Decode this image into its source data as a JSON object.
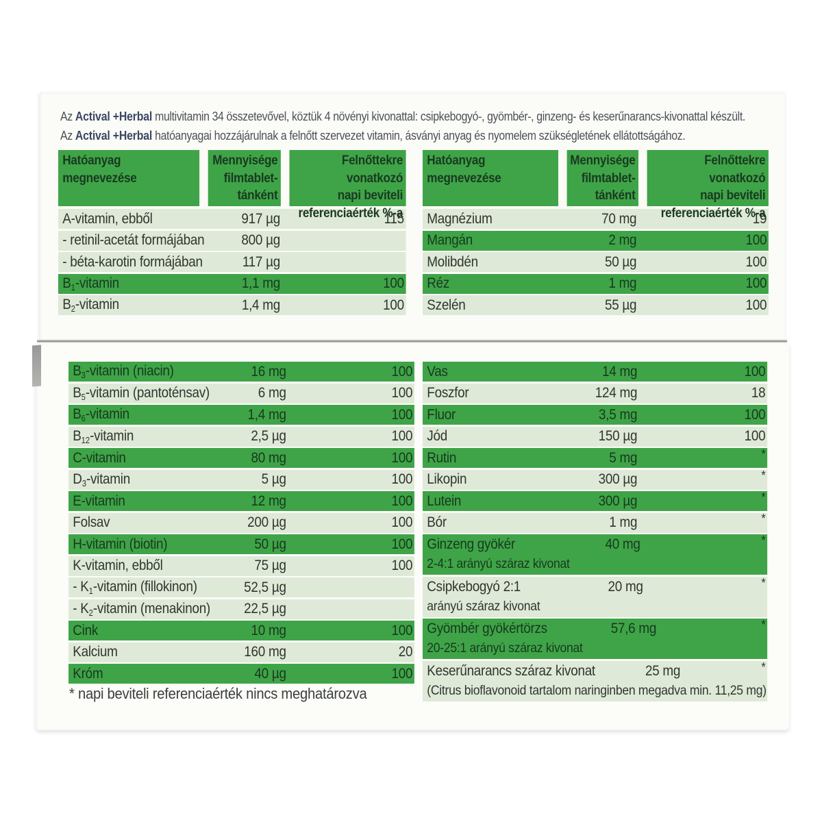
{
  "product": {
    "brand": "Actival +Herbal"
  },
  "intro": {
    "line1": "Az <b>Actival +Herbal</b> multivitamin 34 összetevővel, köztük 4 növényi kivonattal: csipkebogyó-, gyömbér-, ginzeng- és keserűnarancs-kivonattal készült.",
    "line2": "Az <b>Actival +Herbal</b> hatóanyagai hozzájárulnak a felnőtt szervezet vitamin, ásványi anyag és nyomelem szükségletének ellátottságához."
  },
  "colors": {
    "stripe_dark": "#3fa447",
    "stripe_light": "#dfe9d8",
    "header_green": "#3fa447",
    "brand_text": "#3a4763"
  },
  "header": {
    "col1": "Hatóanyag\nmegnevezése",
    "col2": "Mennyisége\nfilmtablet-\ntánként",
    "col3": "Felnőttekre vonatkozó\nnapi beviteli\nreferenciaérték %-a"
  },
  "tables": {
    "top_left": {
      "rows": [
        {
          "name": "A-vitamin, ebből",
          "amount": "917 µg",
          "ref": "115",
          "shade": "light"
        },
        {
          "name": "- retinil-acetát formájában",
          "amount": "800 µg",
          "ref": "",
          "shade": "light"
        },
        {
          "name": "- béta-karotin formájában",
          "amount": "117 µg",
          "ref": "",
          "shade": "light"
        },
        {
          "name": "B<sub>1</sub>-vitamin",
          "amount": "1,1 mg",
          "ref": "100",
          "shade": "dark"
        },
        {
          "name": "B<sub>2</sub>-vitamin",
          "amount": "1,4 mg",
          "ref": "100",
          "shade": "light"
        }
      ]
    },
    "top_right": {
      "rows": [
        {
          "name": "Magnézium",
          "amount": "70 mg",
          "ref": "19",
          "shade": "light"
        },
        {
          "name": "Mangán",
          "amount": "2 mg",
          "ref": "100",
          "shade": "dark"
        },
        {
          "name": "Molibdén",
          "amount": "50 µg",
          "ref": "100",
          "shade": "light"
        },
        {
          "name": "Réz",
          "amount": "1 mg",
          "ref": "100",
          "shade": "dark"
        },
        {
          "name": "Szelén",
          "amount": "55 µg",
          "ref": "100",
          "shade": "light"
        }
      ]
    },
    "bottom_left": {
      "rows": [
        {
          "name": "B<sub>3</sub>-vitamin (niacin)",
          "amount": "16 mg",
          "ref": "100",
          "shade": "dark"
        },
        {
          "name": "B<sub>5</sub>-vitamin (pantoténsav)",
          "amount": "6 mg",
          "ref": "100",
          "shade": "light"
        },
        {
          "name": "B<sub>6</sub>-vitamin",
          "amount": "1,4 mg",
          "ref": "100",
          "shade": "dark"
        },
        {
          "name": "B<sub>12</sub>-vitamin",
          "amount": "2,5 µg",
          "ref": "100",
          "shade": "light"
        },
        {
          "name": "C-vitamin",
          "amount": "80 mg",
          "ref": "100",
          "shade": "dark"
        },
        {
          "name": "D<sub>3</sub>-vitamin",
          "amount": "5 µg",
          "ref": "100",
          "shade": "light"
        },
        {
          "name": "E-vitamin",
          "amount": "12 mg",
          "ref": "100",
          "shade": "dark"
        },
        {
          "name": "Folsav",
          "amount": "200 µg",
          "ref": "100",
          "shade": "light"
        },
        {
          "name": "H-vitamin (biotin)",
          "amount": "50 µg",
          "ref": "100",
          "shade": "dark"
        },
        {
          "name": "K-vitamin, ebből",
          "amount": "75 µg",
          "ref": "100",
          "shade": "light"
        },
        {
          "name": "- K<sub>1</sub>-vitamin (fillokinon)",
          "amount": "52,5 µg",
          "ref": "",
          "shade": "light"
        },
        {
          "name": "- K<sub>2</sub>-vitamin (menakinon)",
          "amount": "22,5 µg",
          "ref": "",
          "shade": "light"
        },
        {
          "name": "Cink",
          "amount": "10 mg",
          "ref": "100",
          "shade": "dark"
        },
        {
          "name": "Kalcium",
          "amount": "160 mg",
          "ref": "20",
          "shade": "light"
        },
        {
          "name": "Króm",
          "amount": "40 µg",
          "ref": "100",
          "shade": "dark"
        }
      ]
    },
    "bottom_right": {
      "rows": [
        {
          "name": "Vas",
          "amount": "14 mg",
          "ref": "100",
          "shade": "dark"
        },
        {
          "name": "Foszfor",
          "amount": "124 mg",
          "ref": "18",
          "shade": "light"
        },
        {
          "name": "Fluor",
          "amount": "3,5 mg",
          "ref": "100",
          "shade": "dark"
        },
        {
          "name": "Jód",
          "amount": "150 µg",
          "ref": "100",
          "shade": "light"
        },
        {
          "name": "Rutin",
          "amount": "5 mg",
          "ref": "*",
          "shade": "dark"
        },
        {
          "name": "Likopin",
          "amount": "300 µg",
          "ref": "*",
          "shade": "light"
        },
        {
          "name": "Lutein",
          "amount": "300 µg",
          "ref": "*",
          "shade": "dark"
        },
        {
          "name": "Bór",
          "amount": "1 mg",
          "ref": "*",
          "shade": "light"
        },
        {
          "name": "Ginzeng gyökér",
          "amount": "40 mg",
          "ref": "*",
          "shade": "dark",
          "sub": "2-4:1 arányú száraz kivonat"
        },
        {
          "name": "Csipkebogyó 2:1",
          "amount": "20 mg",
          "ref": "*",
          "shade": "light",
          "sub": "arányú száraz kivonat"
        },
        {
          "name": "Gyömbér gyökértörzs",
          "amount": "57,6 mg",
          "ref": "*",
          "shade": "dark",
          "sub": "20-25:1 arányú száraz kivonat"
        },
        {
          "name": "Keserűnarancs száraz kivonat",
          "amount": "25 mg",
          "ref": "*",
          "shade": "light",
          "sub": "(Citrus bioflavonoid tartalom naringinben megadva min. 11,25 mg)"
        }
      ]
    }
  },
  "footnote": "* napi beviteli referenciaérték nincs meghatározva"
}
